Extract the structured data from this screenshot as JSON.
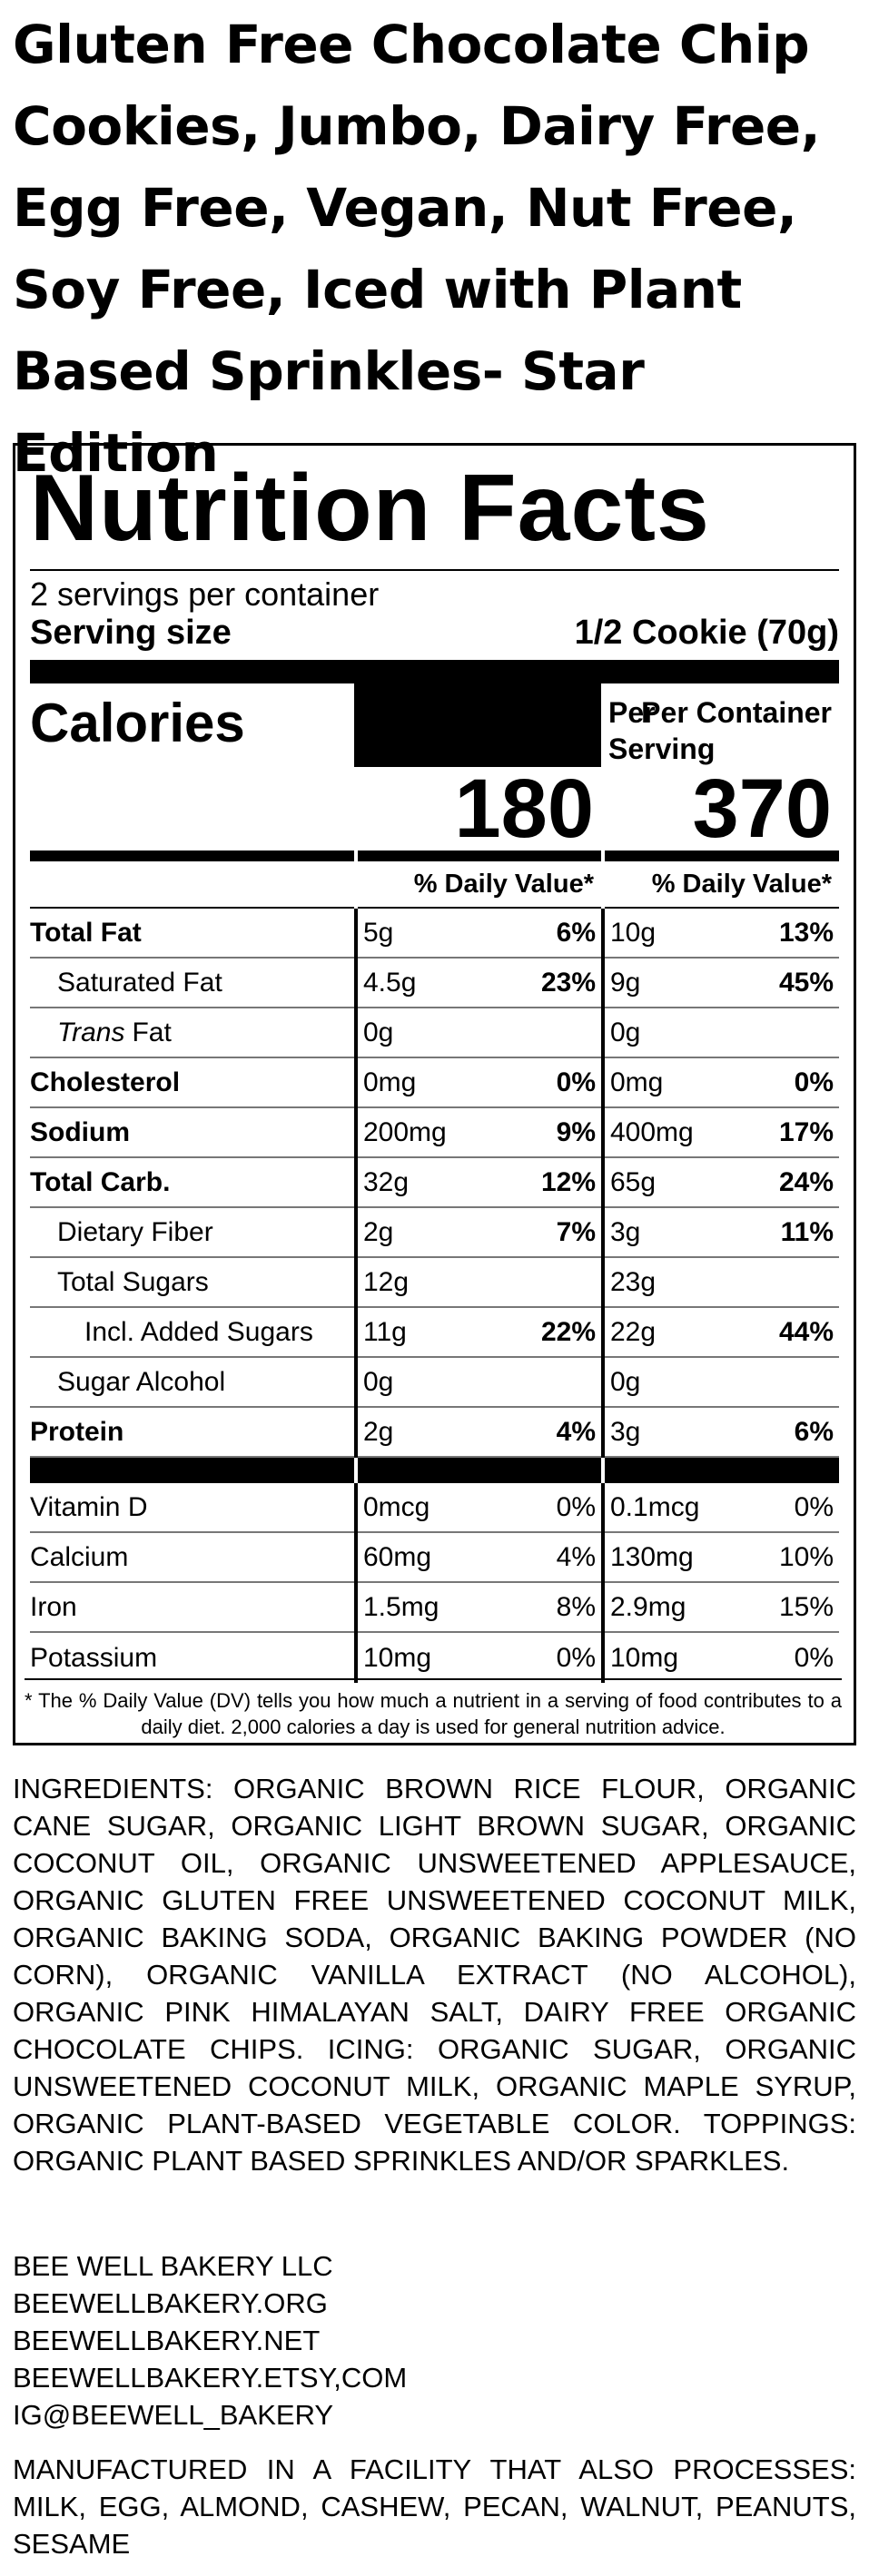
{
  "title": "Gluten Free Chocolate Chip Cookies, Jumbo, Dairy Free, Egg Free, Vegan, Nut Free, Soy Free, Iced with Plant Based Sprinkles- Star Edition",
  "nutrition": {
    "heading": "Nutrition Facts",
    "servings": "2 servings per container",
    "serving_size_label": "Serving size",
    "serving_size": "1/2 Cookie (70g)",
    "column_headers": [
      "Per Serving",
      "Per Container"
    ],
    "calories_label": "Calories",
    "calories": [
      180,
      370
    ],
    "dv_header": "% Daily Value*",
    "rows": [
      {
        "name": "Total Fat",
        "amount": [
          "5g",
          "10g"
        ],
        "dv": [
          "6%",
          "13%"
        ]
      },
      {
        "name": "Saturated Fat",
        "amount": [
          "4.5g",
          "9g"
        ],
        "dv": [
          "23%",
          "45%"
        ]
      },
      {
        "name_italic": "Trans",
        "name": "Fat",
        "amount": [
          "0g",
          "0g"
        ]
      },
      {
        "name": "Cholesterol",
        "amount": [
          "0mg",
          "0mg"
        ],
        "dv": [
          "0%",
          "0%"
        ]
      },
      {
        "name": "Sodium",
        "amount": [
          "200mg",
          "400mg"
        ],
        "dv": [
          "9%",
          "17%"
        ]
      },
      {
        "name": "Total Carb.",
        "amount": [
          "32g",
          "65g"
        ],
        "dv": [
          "12%",
          "24%"
        ]
      },
      {
        "name": "Dietary Fiber",
        "amount": [
          "2g",
          "3g"
        ],
        "dv": [
          "7%",
          "11%"
        ]
      },
      {
        "name": "Total Sugars",
        "amount": [
          "12g",
          "23g"
        ]
      },
      {
        "name": "Incl. Added Sugars",
        "amount": [
          "11g",
          "22g"
        ],
        "dv": [
          "22%",
          "44%"
        ]
      },
      {
        "name": "Sugar Alcohol",
        "amount": [
          "0g",
          "0g"
        ]
      },
      {
        "name": "Protein",
        "amount": [
          "2g",
          "3g"
        ],
        "dv": [
          "4%",
          "6%"
        ]
      }
    ],
    "micros": [
      {
        "name": "Vitamin D",
        "amount": [
          "0mcg",
          "0.1mcg"
        ],
        "dv": [
          "0%",
          "0%"
        ]
      },
      {
        "name": "Calcium",
        "amount": [
          "60mg",
          "130mg"
        ],
        "dv": [
          "4%",
          "10%"
        ]
      },
      {
        "name": "Iron",
        "amount": [
          "1.5mg",
          "2.9mg"
        ],
        "dv": [
          "8%",
          "15%"
        ]
      },
      {
        "name": "Potassium",
        "amount": [
          "10mg",
          "10mg"
        ],
        "dv": [
          "0%",
          "0%"
        ]
      }
    ],
    "footnote": "* The % Daily Value (DV) tells you how much a nutrient in a serving of food contributes to a daily diet. 2,000 calories a day is used for general nutrition advice."
  },
  "ingredients": "INGREDIENTS: ORGANIC BROWN RICE FLOUR, ORGANIC CANE SUGAR, ORGANIC LIGHT BROWN SUGAR, ORGANIC COCONUT OIL, ORGANIC UNSWEETENED APPLESAUCE, ORGANIC GLUTEN FREE UNSWEETENED COCONUT MILK, ORGANIC BAKING SODA, ORGANIC BAKING POWDER (NO CORN), ORGANIC VANILLA EXTRACT (NO ALCOHOL), ORGANIC PINK HIMALAYAN SALT, DAIRY FREE ORGANIC CHOCOLATE CHIPS. ICING: ORGANIC SUGAR, ORGANIC UNSWEETENED COCONUT MILK, ORGANIC MAPLE SYRUP, ORGANIC PLANT-BASED VEGETABLE COLOR. TOPPINGS: ORGANIC PLANT BASED SPRINKLES AND/OR SPARKLES.",
  "contact": [
    "BEE WELL BAKERY LLC",
    "BEEWELLBAKERY.ORG",
    "BEEWELLBAKERY.NET",
    "BEEWELLBAKERY.ETSY,COM",
    "IG@BEEWELL_BAKERY"
  ],
  "allergen": "MANUFACTURED IN A FACILITY THAT ALSO PROCESSES: MILK, EGG, ALMOND, CASHEW, PECAN, WALNUT, PEANUTS, SESAME"
}
